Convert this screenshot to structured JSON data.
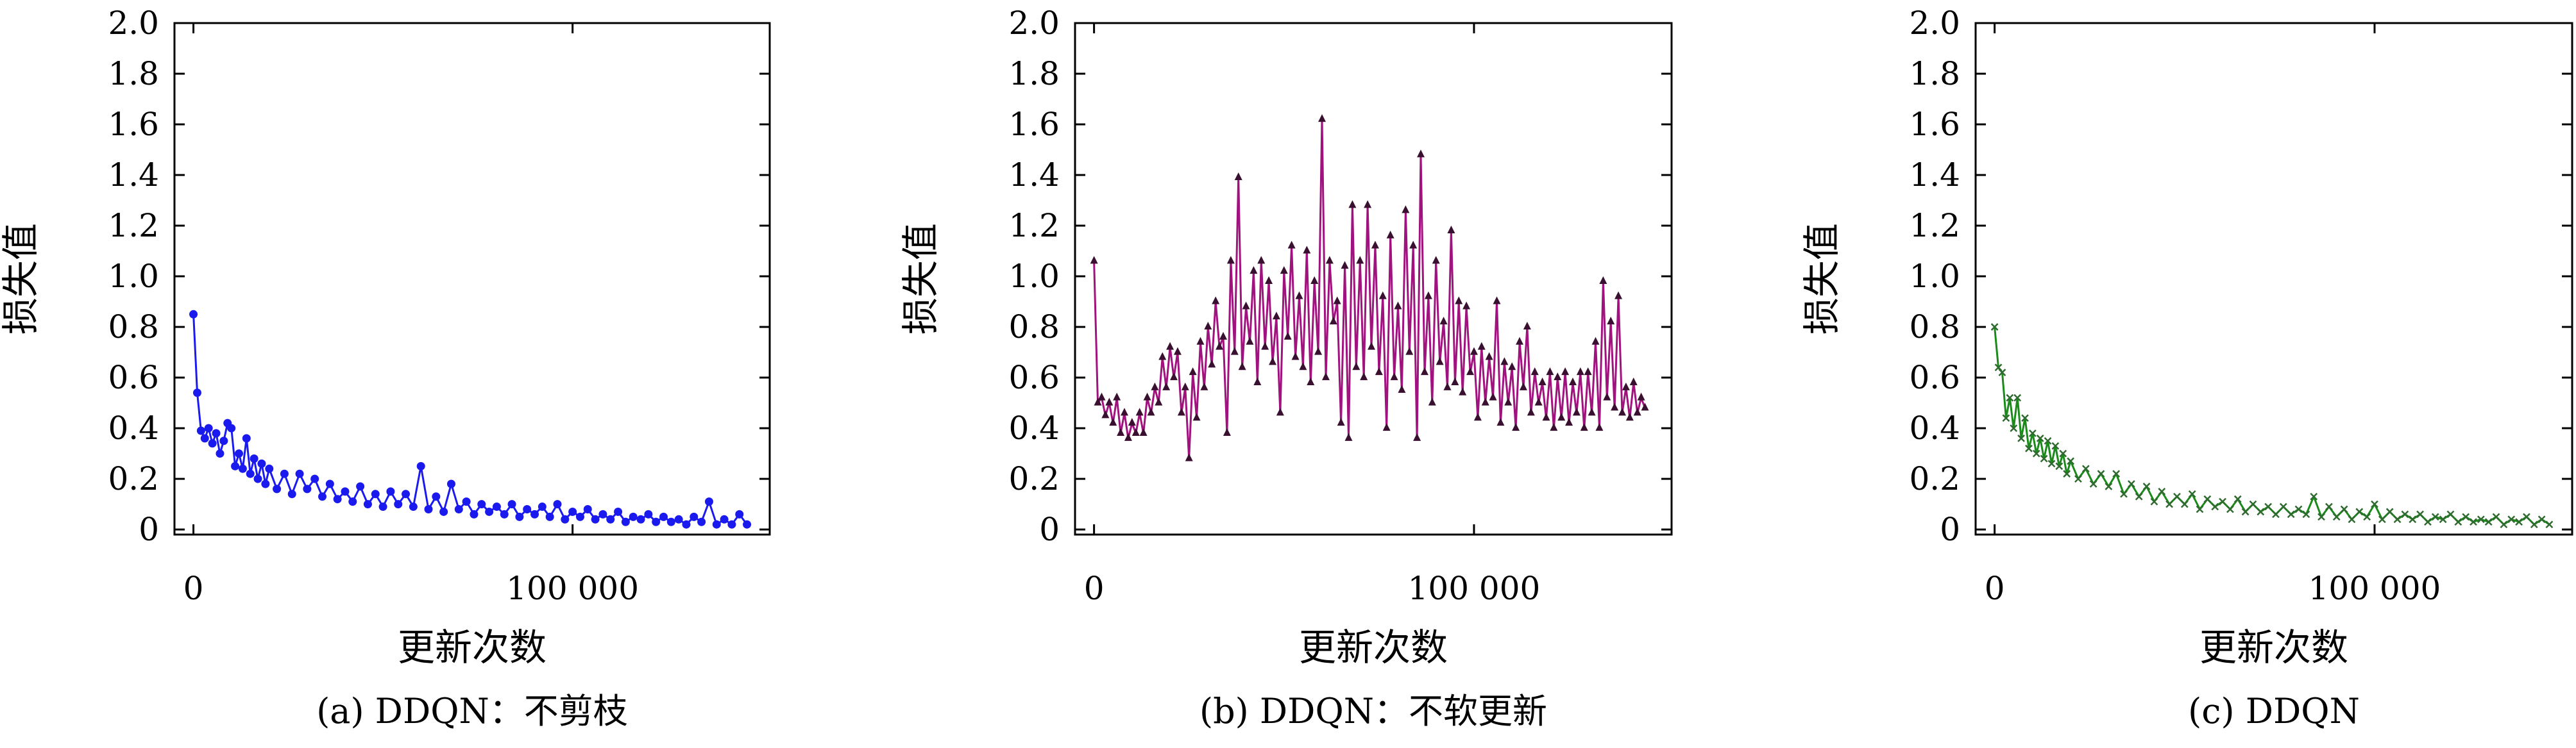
{
  "chart_data": [
    {
      "type": "line",
      "caption": "(a) DDQN：不剪枝",
      "xlabel": "更新次数",
      "ylabel": "损失值",
      "xlim": [
        -5000,
        152000
      ],
      "ylim": [
        -0.02,
        2.0
      ],
      "xticks": [
        {
          "value": 0,
          "label": "0"
        },
        {
          "value": 100000,
          "label": "100 000"
        }
      ],
      "yticks": [
        {
          "value": 0,
          "label": "0"
        },
        {
          "value": 0.2,
          "label": "0.2"
        },
        {
          "value": 0.4,
          "label": "0.4"
        },
        {
          "value": 0.6,
          "label": "0.6"
        },
        {
          "value": 0.8,
          "label": "0.8"
        },
        {
          "value": 1.0,
          "label": "1.0"
        },
        {
          "value": 1.2,
          "label": "1.2"
        },
        {
          "value": 1.4,
          "label": "1.4"
        },
        {
          "value": 1.6,
          "label": "1.6"
        },
        {
          "value": 1.8,
          "label": "1.8"
        },
        {
          "value": 2.0,
          "label": "2.0"
        }
      ],
      "grid": false,
      "marker": "circle",
      "series": [
        {
          "color": "#1a1aee",
          "x": [
            0,
            1000,
            2000,
            3000,
            4000,
            5000,
            6000,
            7000,
            8000,
            9000,
            10000,
            11000,
            12000,
            13000,
            14000,
            15000,
            16000,
            17000,
            18000,
            19000,
            20000,
            22000,
            24000,
            26000,
            28000,
            30000,
            32000,
            34000,
            36000,
            38000,
            40000,
            42000,
            44000,
            46000,
            48000,
            50000,
            52000,
            54000,
            56000,
            58000,
            60000,
            62000,
            64000,
            66000,
            68000,
            70000,
            72000,
            74000,
            76000,
            78000,
            80000,
            82000,
            84000,
            86000,
            88000,
            90000,
            92000,
            94000,
            96000,
            98000,
            100000,
            102000,
            104000,
            106000,
            108000,
            110000,
            112000,
            114000,
            116000,
            118000,
            120000,
            122000,
            124000,
            126000,
            128000,
            130000,
            132000,
            134000,
            136000,
            138000,
            140000,
            142000,
            144000,
            146000
          ],
          "y": [
            0.85,
            0.54,
            0.39,
            0.36,
            0.4,
            0.34,
            0.38,
            0.3,
            0.35,
            0.42,
            0.4,
            0.25,
            0.3,
            0.24,
            0.36,
            0.22,
            0.28,
            0.2,
            0.26,
            0.18,
            0.24,
            0.16,
            0.22,
            0.14,
            0.22,
            0.16,
            0.2,
            0.13,
            0.18,
            0.12,
            0.15,
            0.11,
            0.17,
            0.1,
            0.14,
            0.09,
            0.15,
            0.1,
            0.14,
            0.09,
            0.25,
            0.08,
            0.13,
            0.07,
            0.18,
            0.08,
            0.11,
            0.06,
            0.1,
            0.07,
            0.09,
            0.06,
            0.1,
            0.05,
            0.08,
            0.06,
            0.09,
            0.05,
            0.1,
            0.04,
            0.07,
            0.05,
            0.08,
            0.04,
            0.06,
            0.04,
            0.07,
            0.03,
            0.05,
            0.04,
            0.06,
            0.03,
            0.05,
            0.03,
            0.04,
            0.02,
            0.05,
            0.03,
            0.11,
            0.02,
            0.04,
            0.02,
            0.06,
            0.02
          ]
        }
      ]
    },
    {
      "type": "line",
      "caption": "(b) DDQN：不软更新",
      "xlabel": "更新次数",
      "ylabel": "损失值",
      "xlim": [
        -5000,
        152000
      ],
      "ylim": [
        -0.02,
        2.0
      ],
      "xticks": [
        {
          "value": 0,
          "label": "0"
        },
        {
          "value": 100000,
          "label": "100 000"
        }
      ],
      "yticks": [
        {
          "value": 0,
          "label": "0"
        },
        {
          "value": 0.2,
          "label": "0.2"
        },
        {
          "value": 0.4,
          "label": "0.4"
        },
        {
          "value": 0.6,
          "label": "0.6"
        },
        {
          "value": 0.8,
          "label": "0.8"
        },
        {
          "value": 1.0,
          "label": "1.0"
        },
        {
          "value": 1.2,
          "label": "1.2"
        },
        {
          "value": 1.4,
          "label": "1.4"
        },
        {
          "value": 1.6,
          "label": "1.6"
        },
        {
          "value": 1.8,
          "label": "1.8"
        },
        {
          "value": 2.0,
          "label": "2.0"
        }
      ],
      "grid": false,
      "marker": "triangle",
      "series": [
        {
          "color": "#a0127e",
          "x": [
            0,
            1000,
            2000,
            3000,
            4000,
            5000,
            6000,
            7000,
            8000,
            9000,
            10000,
            11000,
            12000,
            13000,
            14000,
            15000,
            16000,
            17000,
            18000,
            19000,
            20000,
            21000,
            22000,
            23000,
            24000,
            25000,
            26000,
            27000,
            28000,
            29000,
            30000,
            31000,
            32000,
            33000,
            34000,
            35000,
            36000,
            37000,
            38000,
            39000,
            40000,
            41000,
            42000,
            43000,
            44000,
            45000,
            46000,
            47000,
            48000,
            49000,
            50000,
            51000,
            52000,
            53000,
            54000,
            55000,
            56000,
            57000,
            58000,
            59000,
            60000,
            61000,
            62000,
            63000,
            64000,
            65000,
            66000,
            67000,
            68000,
            69000,
            70000,
            71000,
            72000,
            73000,
            74000,
            75000,
            76000,
            77000,
            78000,
            79000,
            80000,
            81000,
            82000,
            83000,
            84000,
            85000,
            86000,
            87000,
            88000,
            89000,
            90000,
            91000,
            92000,
            93000,
            94000,
            95000,
            96000,
            97000,
            98000,
            99000,
            100000,
            101000,
            102000,
            103000,
            104000,
            105000,
            106000,
            107000,
            108000,
            109000,
            110000,
            111000,
            112000,
            113000,
            114000,
            115000,
            116000,
            117000,
            118000,
            119000,
            120000,
            121000,
            122000,
            123000,
            124000,
            125000,
            126000,
            127000,
            128000,
            129000,
            130000,
            131000,
            132000,
            133000,
            134000,
            135000,
            136000,
            137000,
            138000,
            139000,
            140000,
            141000,
            142000,
            143000,
            144000,
            145000
          ],
          "y": [
            1.06,
            0.5,
            0.52,
            0.45,
            0.5,
            0.42,
            0.52,
            0.38,
            0.46,
            0.36,
            0.42,
            0.38,
            0.46,
            0.38,
            0.52,
            0.46,
            0.56,
            0.5,
            0.68,
            0.56,
            0.72,
            0.6,
            0.7,
            0.46,
            0.56,
            0.28,
            0.62,
            0.44,
            0.74,
            0.56,
            0.8,
            0.65,
            0.9,
            0.72,
            0.76,
            0.38,
            1.06,
            0.7,
            1.39,
            0.64,
            0.88,
            0.74,
            1.02,
            0.58,
            1.06,
            0.72,
            0.98,
            0.66,
            0.84,
            0.46,
            1.02,
            0.76,
            1.12,
            0.68,
            0.92,
            0.64,
            1.1,
            0.58,
            0.98,
            0.7,
            1.62,
            0.6,
            1.06,
            0.82,
            0.9,
            0.42,
            1.04,
            0.36,
            1.28,
            0.64,
            1.06,
            0.6,
            1.28,
            0.72,
            1.12,
            0.62,
            0.92,
            0.4,
            1.16,
            0.6,
            0.88,
            0.55,
            1.26,
            0.7,
            1.12,
            0.36,
            1.48,
            0.62,
            0.92,
            0.5,
            1.06,
            0.66,
            0.82,
            0.56,
            1.18,
            0.58,
            0.9,
            0.54,
            0.88,
            0.62,
            0.7,
            0.44,
            0.72,
            0.5,
            0.68,
            0.52,
            0.9,
            0.42,
            0.66,
            0.5,
            0.64,
            0.4,
            0.74,
            0.56,
            0.8,
            0.46,
            0.62,
            0.5,
            0.58,
            0.44,
            0.62,
            0.4,
            0.6,
            0.44,
            0.62,
            0.42,
            0.58,
            0.46,
            0.62,
            0.4,
            0.62,
            0.46,
            0.74,
            0.4,
            0.98,
            0.52,
            0.82,
            0.48,
            0.92,
            0.46,
            0.56,
            0.44,
            0.58,
            0.46,
            0.52,
            0.48
          ]
        }
      ]
    },
    {
      "type": "line",
      "caption": "(c) DDQN",
      "xlabel": "更新次数",
      "ylabel": "损失值",
      "xlim": [
        -5000,
        152000
      ],
      "ylim": [
        -0.02,
        2.0
      ],
      "xticks": [
        {
          "value": 0,
          "label": "0"
        },
        {
          "value": 100000,
          "label": "100 000"
        }
      ],
      "yticks": [
        {
          "value": 0,
          "label": "0"
        },
        {
          "value": 0.2,
          "label": "0.2"
        },
        {
          "value": 0.4,
          "label": "0.4"
        },
        {
          "value": 0.6,
          "label": "0.6"
        },
        {
          "value": 0.8,
          "label": "0.8"
        },
        {
          "value": 1.0,
          "label": "1.0"
        },
        {
          "value": 1.2,
          "label": "1.2"
        },
        {
          "value": 1.4,
          "label": "1.4"
        },
        {
          "value": 1.6,
          "label": "1.6"
        },
        {
          "value": 1.8,
          "label": "1.8"
        },
        {
          "value": 2.0,
          "label": "2.0"
        }
      ],
      "grid": false,
      "marker": "cross",
      "series": [
        {
          "color": "#1a8a1a",
          "x": [
            0,
            1000,
            2000,
            3000,
            4000,
            5000,
            6000,
            7000,
            8000,
            9000,
            10000,
            11000,
            12000,
            13000,
            14000,
            15000,
            16000,
            17000,
            18000,
            19000,
            20000,
            22000,
            24000,
            26000,
            28000,
            30000,
            32000,
            34000,
            36000,
            38000,
            40000,
            42000,
            44000,
            46000,
            48000,
            50000,
            52000,
            54000,
            56000,
            58000,
            60000,
            62000,
            64000,
            66000,
            68000,
            70000,
            72000,
            74000,
            76000,
            78000,
            80000,
            82000,
            84000,
            86000,
            88000,
            90000,
            92000,
            94000,
            96000,
            98000,
            100000,
            102000,
            104000,
            106000,
            108000,
            110000,
            112000,
            114000,
            116000,
            118000,
            120000,
            122000,
            124000,
            126000,
            128000,
            130000,
            132000,
            134000,
            136000,
            138000,
            140000,
            142000,
            144000,
            146000
          ],
          "y": [
            0.8,
            0.64,
            0.62,
            0.44,
            0.52,
            0.4,
            0.52,
            0.36,
            0.44,
            0.32,
            0.38,
            0.3,
            0.36,
            0.28,
            0.35,
            0.26,
            0.33,
            0.25,
            0.3,
            0.22,
            0.27,
            0.2,
            0.24,
            0.18,
            0.22,
            0.17,
            0.22,
            0.14,
            0.18,
            0.13,
            0.17,
            0.11,
            0.15,
            0.1,
            0.13,
            0.1,
            0.14,
            0.08,
            0.12,
            0.09,
            0.11,
            0.08,
            0.12,
            0.07,
            0.1,
            0.07,
            0.09,
            0.06,
            0.09,
            0.06,
            0.08,
            0.06,
            0.13,
            0.05,
            0.09,
            0.05,
            0.08,
            0.04,
            0.07,
            0.05,
            0.1,
            0.04,
            0.07,
            0.04,
            0.06,
            0.04,
            0.06,
            0.03,
            0.05,
            0.04,
            0.06,
            0.03,
            0.05,
            0.03,
            0.04,
            0.03,
            0.05,
            0.02,
            0.04,
            0.03,
            0.05,
            0.02,
            0.04,
            0.02
          ]
        }
      ]
    }
  ]
}
